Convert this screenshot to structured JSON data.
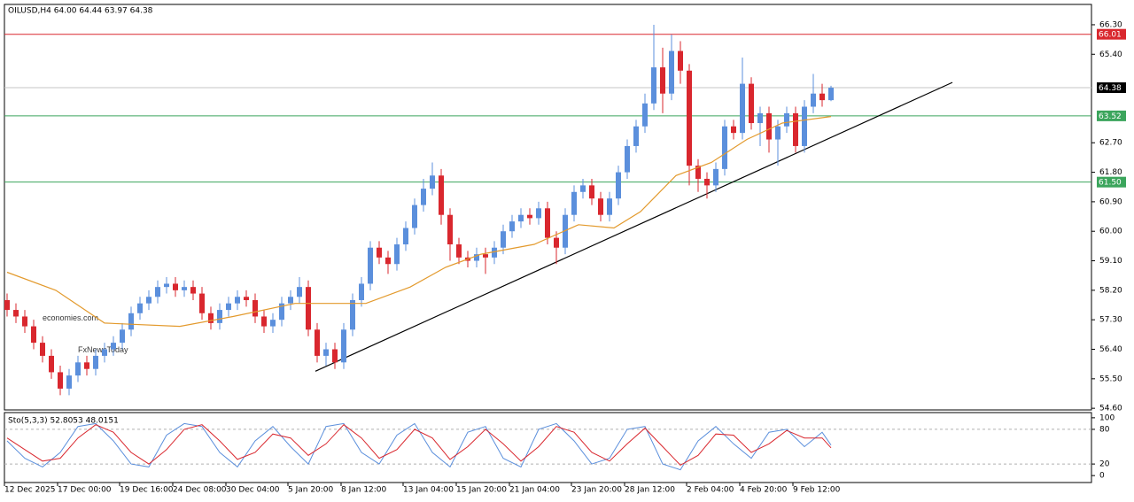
{
  "chart_data": [
    {
      "type": "candlestick",
      "title": "OILUSD,H4  64.00 64.44 63.97 64.38",
      "up_color": "#5b8fdc",
      "down_color": "#d9272e",
      "ylim": [
        54.55,
        66.92
      ],
      "yticks": [
        {
          "value": 54.6,
          "label": "54.60"
        },
        {
          "value": 55.5,
          "label": "55.50"
        },
        {
          "value": 56.4,
          "label": "56.40"
        },
        {
          "value": 57.3,
          "label": "57.30"
        },
        {
          "value": 58.2,
          "label": "58.20"
        },
        {
          "value": 59.1,
          "label": "59.10"
        },
        {
          "value": 60,
          "label": "60.00"
        },
        {
          "value": 60.9,
          "label": "60.90"
        },
        {
          "value": 61.8,
          "label": "61.80"
        },
        {
          "value": 62.7,
          "label": "62.70"
        },
        {
          "value": 65.4,
          "label": "65.40"
        },
        {
          "value": 66.3,
          "label": "66.30"
        }
      ],
      "xticks": [
        {
          "value": 0,
          "label": "12 Dec 2025"
        },
        {
          "value": 6,
          "label": "17 Dec 00:00"
        },
        {
          "value": 13,
          "label": "19 Dec 16:00"
        },
        {
          "value": 19,
          "label": "24 Dec 08:00"
        },
        {
          "value": 25,
          "label": "30 Dec 04:00"
        },
        {
          "value": 32,
          "label": "5 Jan 20:00"
        },
        {
          "value": 38,
          "label": "8 Jan 12:00"
        },
        {
          "value": 45,
          "label": "13 Jan 04:00"
        },
        {
          "value": 51,
          "label": "15 Jan 20:00"
        },
        {
          "value": 57,
          "label": "21 Jan 04:00"
        },
        {
          "value": 64,
          "label": "23 Jan 20:00"
        },
        {
          "value": 70,
          "label": "28 Jan 12:00"
        },
        {
          "value": 77,
          "label": "2 Feb 04:00"
        },
        {
          "value": 83,
          "label": "4 Feb 20:00"
        },
        {
          "value": 89,
          "label": "9 Feb 12:00"
        }
      ],
      "candles": [
        [
          57.9,
          58.1,
          57.4,
          57.6
        ],
        [
          57.6,
          57.8,
          57.2,
          57.4
        ],
        [
          57.4,
          57.6,
          56.9,
          57.1
        ],
        [
          57.1,
          57.3,
          56.4,
          56.6
        ],
        [
          56.6,
          56.8,
          56.0,
          56.2
        ],
        [
          56.2,
          56.4,
          55.5,
          55.7
        ],
        [
          55.7,
          55.9,
          55.0,
          55.2
        ],
        [
          55.2,
          55.8,
          55.0,
          55.6
        ],
        [
          55.6,
          56.2,
          55.4,
          56.0
        ],
        [
          56.0,
          56.2,
          55.6,
          55.8
        ],
        [
          55.8,
          56.4,
          55.6,
          56.2
        ],
        [
          56.2,
          56.6,
          56.0,
          56.4
        ],
        [
          56.4,
          56.8,
          56.2,
          56.6
        ],
        [
          56.6,
          57.2,
          56.4,
          57.0
        ],
        [
          57.0,
          57.7,
          56.8,
          57.5
        ],
        [
          57.5,
          58.0,
          57.3,
          57.8
        ],
        [
          57.8,
          58.2,
          57.6,
          58.0
        ],
        [
          58.0,
          58.5,
          57.8,
          58.3
        ],
        [
          58.3,
          58.6,
          58.1,
          58.4
        ],
        [
          58.4,
          58.6,
          58.0,
          58.2
        ],
        [
          58.2,
          58.5,
          58.0,
          58.3
        ],
        [
          58.3,
          58.5,
          57.9,
          58.1
        ],
        [
          58.1,
          58.3,
          57.3,
          57.5
        ],
        [
          57.5,
          57.7,
          57.0,
          57.2
        ],
        [
          57.2,
          57.8,
          57.0,
          57.6
        ],
        [
          57.6,
          58.0,
          57.4,
          57.8
        ],
        [
          57.8,
          58.2,
          57.6,
          58.0
        ],
        [
          58.0,
          58.2,
          57.7,
          57.9
        ],
        [
          57.9,
          58.1,
          57.2,
          57.4
        ],
        [
          57.4,
          57.6,
          56.9,
          57.1
        ],
        [
          57.1,
          57.5,
          56.9,
          57.3
        ],
        [
          57.3,
          58.0,
          57.1,
          57.8
        ],
        [
          57.8,
          58.2,
          57.6,
          58.0
        ],
        [
          58.0,
          58.6,
          57.8,
          58.3
        ],
        [
          58.3,
          58.5,
          56.8,
          57.0
        ],
        [
          57.0,
          57.2,
          56.0,
          56.2
        ],
        [
          56.2,
          56.6,
          55.9,
          56.4
        ],
        [
          56.4,
          56.6,
          55.8,
          56.0
        ],
        [
          56.0,
          57.2,
          55.8,
          57.0
        ],
        [
          57.0,
          58.1,
          56.8,
          57.9
        ],
        [
          57.9,
          58.6,
          57.7,
          58.4
        ],
        [
          58.4,
          59.7,
          58.2,
          59.5
        ],
        [
          59.5,
          59.7,
          59.0,
          59.2
        ],
        [
          59.2,
          59.4,
          58.7,
          59.0
        ],
        [
          59.0,
          59.8,
          58.8,
          59.6
        ],
        [
          59.6,
          60.3,
          59.4,
          60.1
        ],
        [
          60.1,
          61.0,
          59.9,
          60.8
        ],
        [
          60.8,
          61.6,
          60.6,
          61.3
        ],
        [
          61.3,
          62.1,
          61.1,
          61.7
        ],
        [
          61.7,
          61.9,
          60.2,
          60.5
        ],
        [
          60.5,
          60.7,
          59.1,
          59.6
        ],
        [
          59.6,
          59.8,
          59.0,
          59.2
        ],
        [
          59.2,
          59.4,
          58.9,
          59.1
        ],
        [
          59.1,
          59.5,
          58.9,
          59.3
        ],
        [
          59.3,
          59.5,
          58.7,
          59.2
        ],
        [
          59.2,
          59.7,
          59.0,
          59.5
        ],
        [
          59.5,
          60.2,
          59.3,
          60.0
        ],
        [
          60.0,
          60.5,
          59.8,
          60.3
        ],
        [
          60.3,
          60.7,
          60.1,
          60.5
        ],
        [
          60.5,
          60.7,
          60.2,
          60.4
        ],
        [
          60.4,
          60.9,
          60.2,
          60.7
        ],
        [
          60.7,
          60.9,
          59.6,
          59.8
        ],
        [
          59.8,
          60.0,
          59.0,
          59.5
        ],
        [
          59.5,
          60.7,
          59.3,
          60.5
        ],
        [
          60.5,
          61.4,
          60.3,
          61.2
        ],
        [
          61.2,
          61.6,
          61.0,
          61.4
        ],
        [
          61.4,
          61.6,
          60.8,
          61.0
        ],
        [
          61.0,
          61.2,
          60.3,
          60.5
        ],
        [
          60.5,
          61.2,
          60.3,
          61.0
        ],
        [
          61.0,
          62.0,
          60.8,
          61.8
        ],
        [
          61.8,
          62.8,
          61.6,
          62.6
        ],
        [
          62.6,
          63.4,
          62.4,
          63.2
        ],
        [
          63.2,
          64.2,
          63.0,
          63.9
        ],
        [
          63.9,
          66.3,
          63.7,
          65.0
        ],
        [
          65.0,
          65.6,
          63.6,
          64.2
        ],
        [
          64.2,
          66.0,
          64.0,
          65.5
        ],
        [
          65.5,
          65.8,
          64.5,
          64.9
        ],
        [
          64.9,
          65.1,
          61.4,
          62.0
        ],
        [
          62.0,
          62.2,
          61.2,
          61.6
        ],
        [
          61.6,
          61.8,
          61.0,
          61.4
        ],
        [
          61.4,
          62.1,
          61.2,
          61.9
        ],
        [
          61.9,
          63.4,
          61.7,
          63.2
        ],
        [
          63.2,
          63.4,
          62.8,
          63.0
        ],
        [
          63.0,
          65.3,
          62.8,
          64.5
        ],
        [
          64.5,
          64.7,
          63.1,
          63.3
        ],
        [
          63.3,
          63.8,
          62.6,
          63.6
        ],
        [
          63.6,
          63.8,
          62.4,
          62.8
        ],
        [
          62.8,
          63.4,
          62.0,
          63.2
        ],
        [
          63.2,
          63.8,
          63.0,
          63.6
        ],
        [
          63.6,
          63.8,
          62.4,
          62.6
        ],
        [
          62.6,
          64.0,
          62.4,
          63.8
        ],
        [
          63.8,
          64.8,
          63.6,
          64.2
        ],
        [
          64.2,
          64.5,
          63.8,
          64.0
        ],
        [
          64.0,
          64.44,
          63.97,
          64.38
        ]
      ],
      "ma": {
        "color": "#e39a2d",
        "x": [
          0,
          5.5,
          11,
          19.5,
          25.5,
          32.5,
          37.5,
          40.5,
          45.5,
          49.5,
          53.5,
          59.5,
          64.5,
          68.5,
          71.5,
          75.5,
          79.5,
          83.5,
          87.5,
          93
        ],
        "values": [
          58.75,
          58.2,
          57.2,
          57.1,
          57.4,
          57.8,
          57.8,
          57.8,
          58.3,
          58.9,
          59.3,
          59.6,
          60.2,
          60.1,
          60.6,
          61.7,
          62.1,
          62.8,
          63.3,
          63.5
        ]
      },
      "trendline": {
        "color": "#000000",
        "x": [
          34.8,
          106.7
        ],
        "values": [
          55.73,
          64.54
        ]
      },
      "levels": [
        {
          "price": 66.01,
          "color": "#d9272e"
        },
        {
          "price": 64.38,
          "color": "#000000",
          "line_color": "#c4c4c4"
        },
        {
          "price": 63.52,
          "color": "#3ba55c"
        },
        {
          "price": {
            "value": 61.5,
            "label": "61.50"
          },
          "color": "#3ba55c"
        }
      ],
      "watermarks": [
        {
          "text": "economies.com",
          "color": "#f6c39c"
        },
        {
          "text": "FxNewsToday",
          "color": "#d2d2d2"
        }
      ]
    },
    {
      "type": "line",
      "title": "Sto(5,3,3) 52.8053 48.0151",
      "ylim": [
        -12,
        109
      ],
      "yticks": [
        0,
        20,
        80,
        100
      ],
      "levels": [
        20,
        80
      ],
      "x": [
        0,
        2,
        4,
        6,
        8,
        10,
        12,
        14,
        16,
        18,
        20,
        22,
        24,
        26,
        28,
        30,
        32,
        34,
        36,
        38,
        40,
        42,
        44,
        46,
        48,
        50,
        52,
        54,
        56,
        58,
        60,
        62,
        64,
        66,
        68,
        70,
        72,
        74,
        76,
        78,
        80,
        82,
        84,
        86,
        88,
        90,
        92,
        93
      ],
      "series": [
        {
          "color": "#5b8fdc",
          "values": [
            60,
            30,
            15,
            40,
            85,
            90,
            60,
            20,
            15,
            70,
            90,
            85,
            40,
            15,
            60,
            85,
            50,
            20,
            85,
            90,
            40,
            20,
            70,
            90,
            40,
            15,
            75,
            85,
            30,
            15,
            80,
            90,
            60,
            20,
            30,
            80,
            85,
            20,
            10,
            60,
            85,
            55,
            30,
            75,
            80,
            50,
            75,
            52.8053
          ]
        },
        {
          "color": "#d9272e",
          "values": [
            65,
            45,
            25,
            30,
            65,
            88,
            75,
            40,
            20,
            45,
            80,
            88,
            60,
            28,
            40,
            72,
            65,
            35,
            55,
            88,
            65,
            30,
            45,
            80,
            65,
            28,
            50,
            80,
            55,
            25,
            50,
            85,
            75,
            40,
            25,
            55,
            82,
            50,
            18,
            35,
            72,
            70,
            40,
            55,
            78,
            65,
            65,
            48.0151
          ]
        }
      ]
    }
  ]
}
